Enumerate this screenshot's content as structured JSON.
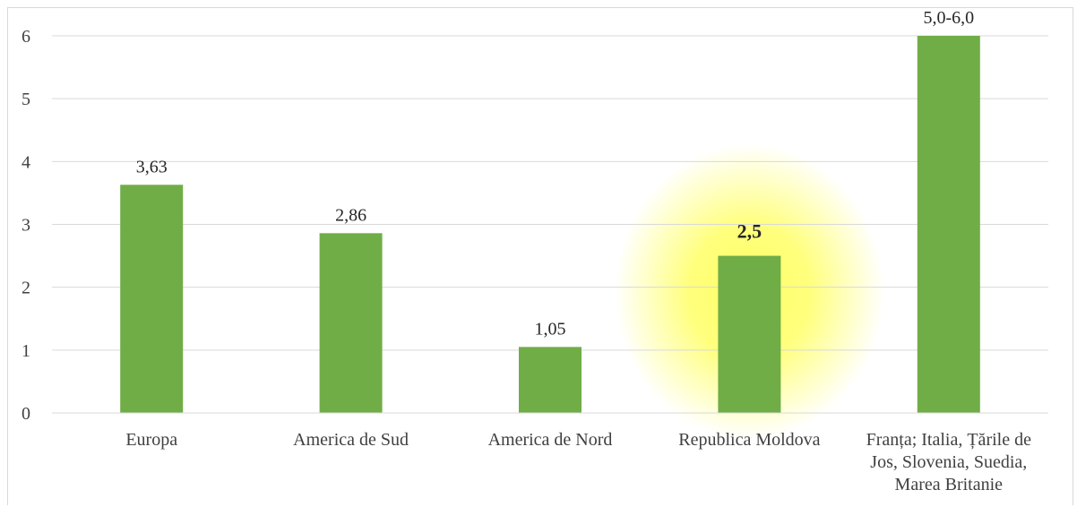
{
  "chart_data": {
    "type": "bar",
    "categories": [
      [
        "Europa"
      ],
      [
        "America de Sud"
      ],
      [
        "America de Nord"
      ],
      [
        "Republica Moldova"
      ],
      [
        "Franța; Italia, Țările de",
        "Jos, Slovenia, Suedia,",
        "Marea Britanie"
      ]
    ],
    "values": [
      3.63,
      2.86,
      1.05,
      2.5,
      6.0
    ],
    "data_labels": [
      "3,63",
      "2,86",
      "1,05",
      "2,5",
      "5,0-6,0"
    ],
    "highlighted_index": 3,
    "y_ticks": [
      "0",
      "1",
      "2",
      "3",
      "4",
      "5",
      "6"
    ],
    "ylim": [
      0,
      6
    ],
    "grid": true,
    "colors": {
      "bar": "#70ad47",
      "grid": "#d9d9d9",
      "highlight": "#ffff66"
    }
  }
}
